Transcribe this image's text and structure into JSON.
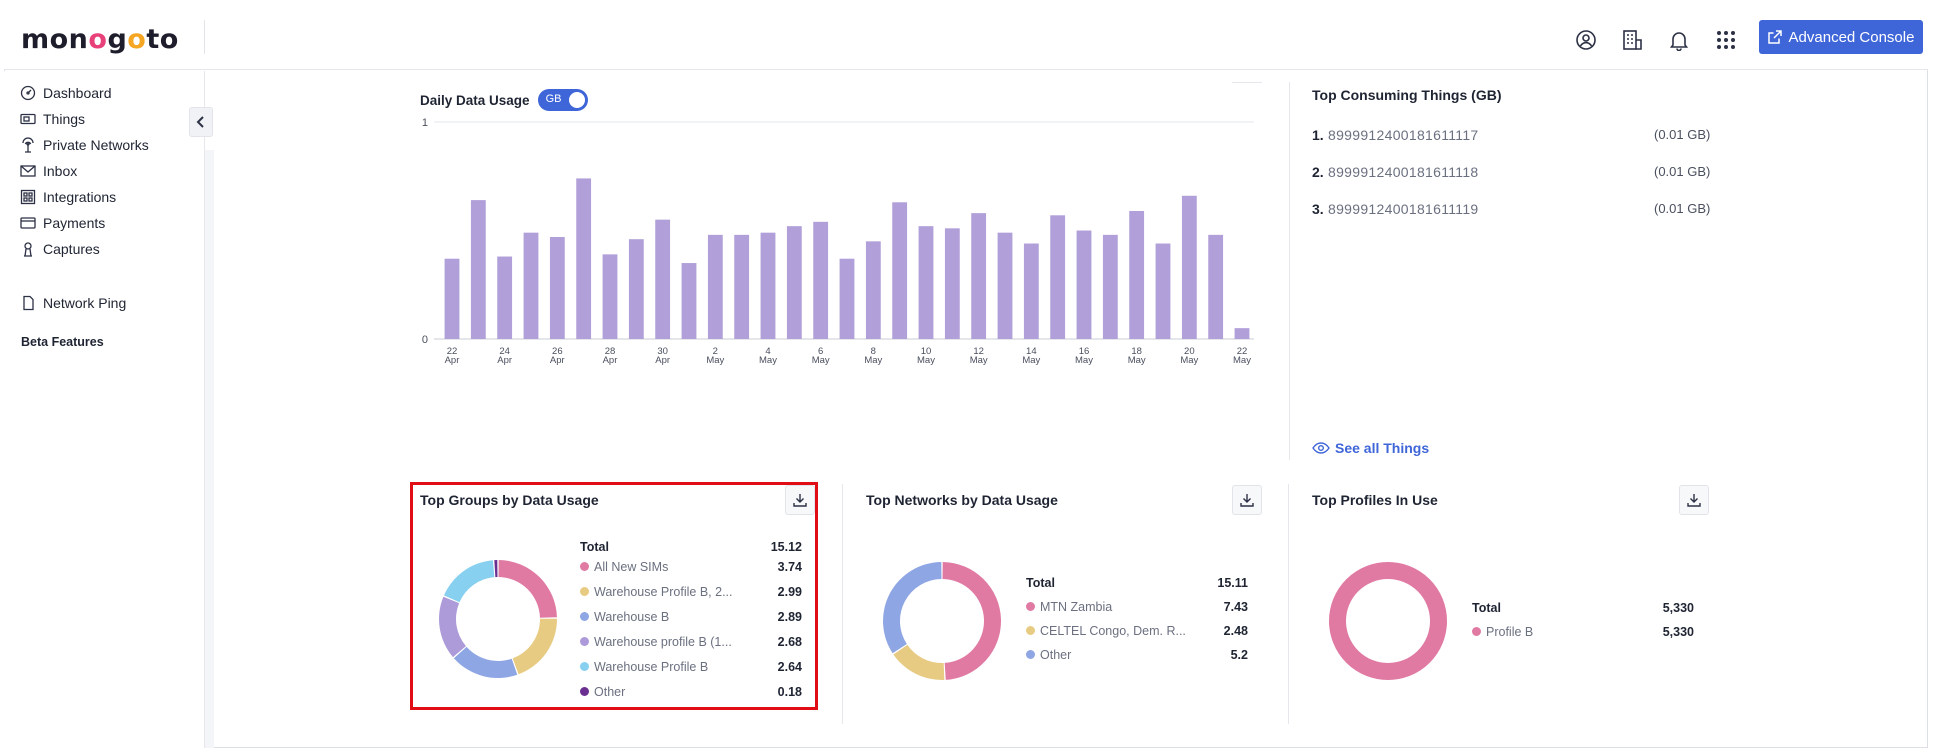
{
  "header": {
    "logo_text": "monogoto",
    "advanced_console_label": "Advanced Console",
    "icons": [
      "user-circle-icon",
      "building-icon",
      "bell-icon",
      "apps-grid-icon"
    ]
  },
  "sidebar": {
    "items": [
      {
        "label": "Dashboard",
        "icon": "dashboard-icon"
      },
      {
        "label": "Things",
        "icon": "sim-card-icon"
      },
      {
        "label": "Private Networks",
        "icon": "antenna-icon"
      },
      {
        "label": "Inbox",
        "icon": "mail-icon"
      },
      {
        "label": "Integrations",
        "icon": "integrations-icon"
      },
      {
        "label": "Payments",
        "icon": "card-icon"
      },
      {
        "label": "Captures",
        "icon": "captures-icon"
      }
    ],
    "beta_title": "Beta Features",
    "beta_items": [
      {
        "label": "Network Ping",
        "icon": "device-icon"
      }
    ]
  },
  "daily_usage": {
    "title": "Daily Data Usage",
    "unit_toggle": "GB"
  },
  "chart_data": {
    "type": "bar",
    "title": "Daily Data Usage",
    "ylim": [
      0,
      1
    ],
    "yticks": [
      "0",
      "1"
    ],
    "bar_color": "#b09fd8",
    "categories": [
      "22 Apr",
      "23 Apr",
      "24 Apr",
      "25 Apr",
      "26 Apr",
      "27 Apr",
      "28 Apr",
      "29 Apr",
      "30 Apr",
      "1 May",
      "2 May",
      "3 May",
      "4 May",
      "5 May",
      "6 May",
      "7 May",
      "8 May",
      "9 May",
      "10 May",
      "11 May",
      "12 May",
      "13 May",
      "14 May",
      "15 May",
      "16 May",
      "17 May",
      "18 May",
      "19 May",
      "20 May",
      "21 May",
      "22 May"
    ],
    "values": [
      0.37,
      0.64,
      0.38,
      0.49,
      0.47,
      0.74,
      0.39,
      0.46,
      0.55,
      0.35,
      0.48,
      0.48,
      0.49,
      0.52,
      0.54,
      0.37,
      0.45,
      0.63,
      0.52,
      0.51,
      0.58,
      0.49,
      0.44,
      0.57,
      0.5,
      0.48,
      0.59,
      0.44,
      0.66,
      0.48,
      0.05
    ],
    "xtick_labels": [
      {
        "day": "22",
        "month": "Apr",
        "index": 0
      },
      {
        "day": "24",
        "month": "Apr",
        "index": 2
      },
      {
        "day": "26",
        "month": "Apr",
        "index": 4
      },
      {
        "day": "28",
        "month": "Apr",
        "index": 6
      },
      {
        "day": "30",
        "month": "Apr",
        "index": 8
      },
      {
        "day": "2",
        "month": "May",
        "index": 10
      },
      {
        "day": "4",
        "month": "May",
        "index": 12
      },
      {
        "day": "6",
        "month": "May",
        "index": 14
      },
      {
        "day": "8",
        "month": "May",
        "index": 16
      },
      {
        "day": "10",
        "month": "May",
        "index": 18
      },
      {
        "day": "12",
        "month": "May",
        "index": 20
      },
      {
        "day": "14",
        "month": "May",
        "index": 22
      },
      {
        "day": "16",
        "month": "May",
        "index": 24
      },
      {
        "day": "18",
        "month": "May",
        "index": 26
      },
      {
        "day": "20",
        "month": "May",
        "index": 28
      },
      {
        "day": "22",
        "month": "May",
        "index": 30
      }
    ]
  },
  "top_consuming": {
    "title": "Top Consuming Things (GB)",
    "items": [
      {
        "rank": "1.",
        "iccid": "8999912400181611117",
        "value": "(0.01 GB)"
      },
      {
        "rank": "2.",
        "iccid": "8999912400181611118",
        "value": "(0.01 GB)"
      },
      {
        "rank": "3.",
        "iccid": "8999912400181611119",
        "value": "(0.01 GB)"
      }
    ],
    "see_all": "See all Things"
  },
  "top_groups": {
    "title": "Top Groups by Data Usage",
    "total_label": "Total",
    "total_value": "15.12",
    "items": [
      {
        "name": "All New SIMs",
        "value": "3.74",
        "num": 3.74,
        "color": "#e07aa3"
      },
      {
        "name": "Warehouse Profile B, 2...",
        "value": "2.99",
        "num": 2.99,
        "color": "#e8cb82"
      },
      {
        "name": "Warehouse B",
        "value": "2.89",
        "num": 2.89,
        "color": "#8ea6e3"
      },
      {
        "name": "Warehouse profile B (1...",
        "value": "2.68",
        "num": 2.68,
        "color": "#ad9bd9"
      },
      {
        "name": "Warehouse Profile B",
        "value": "2.64",
        "num": 2.64,
        "color": "#87d0f0"
      },
      {
        "name": "Other",
        "value": "0.18",
        "num": 0.18,
        "color": "#6a2f91"
      }
    ]
  },
  "top_networks": {
    "title": "Top Networks by Data Usage",
    "total_label": "Total",
    "total_value": "15.11",
    "items": [
      {
        "name": "MTN Zambia",
        "value": "7.43",
        "num": 7.43,
        "color": "#e07aa3"
      },
      {
        "name": "CELTEL Congo, Dem. R...",
        "value": "2.48",
        "num": 2.48,
        "color": "#e8cb82"
      },
      {
        "name": "Other",
        "value": "5.2",
        "num": 5.2,
        "color": "#8ea6e3"
      }
    ]
  },
  "top_profiles": {
    "title": "Top Profiles In Use",
    "total_label": "Total",
    "total_value": "5,330",
    "items": [
      {
        "name": "Profile B",
        "value": "5,330",
        "num": 5330,
        "color": "#e07aa3"
      }
    ]
  }
}
